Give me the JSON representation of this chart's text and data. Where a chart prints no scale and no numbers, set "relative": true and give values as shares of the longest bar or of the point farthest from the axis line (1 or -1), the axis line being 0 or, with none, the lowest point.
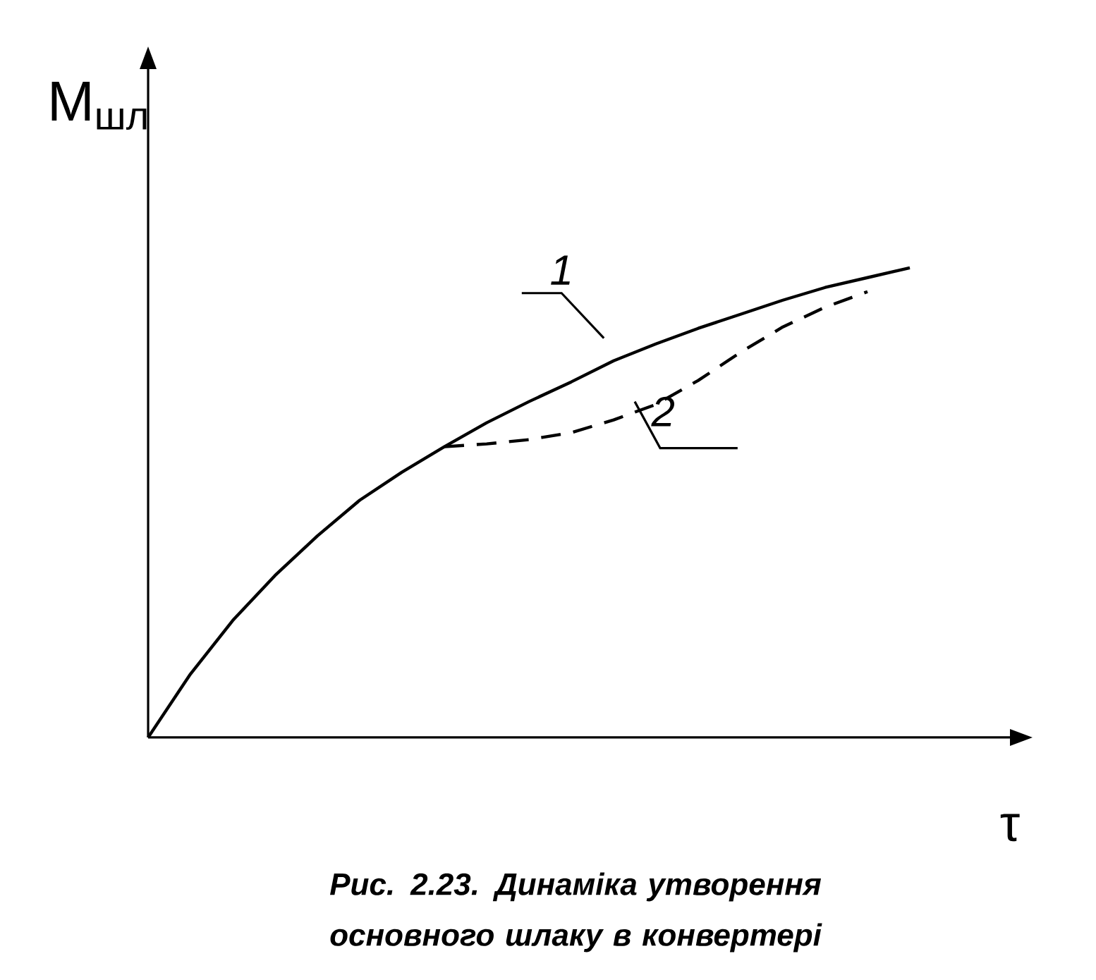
{
  "chart_data": {
    "type": "line",
    "relative": true,
    "xlabel": "τ",
    "ylabel": "M$_{шл}$",
    "annotations": [
      "Рис. 2.23. Динаміка утворення основного шлаку в конвертері"
    ],
    "categories": [
      null,
      null,
      null,
      null,
      null,
      null,
      null,
      null,
      null,
      null,
      null,
      null,
      null,
      null,
      null,
      null,
      null,
      null,
      null
    ],
    "marker": "none",
    "series": [
      {
        "name": "1",
        "color": "#000000",
        "line_style": "solid",
        "values": [
          0,
          0.135,
          0.249,
          0.345,
          0.429,
          0.505,
          0.565,
          0.619,
          0.67,
          0.715,
          0.757,
          0.802,
          0.838,
          0.871,
          0.901,
          0.931,
          0.958,
          0.979,
          1
        ]
      },
      {
        "name": "2",
        "color": "#000000",
        "line_style": "dashed",
        "values": [
          null,
          null,
          null,
          null,
          null,
          null,
          null,
          0.619,
          0.625,
          0.634,
          0.649,
          0.676,
          0.709,
          0.76,
          0.82,
          0.874,
          0.916,
          0.949,
          null
        ]
      }
    ]
  }
}
